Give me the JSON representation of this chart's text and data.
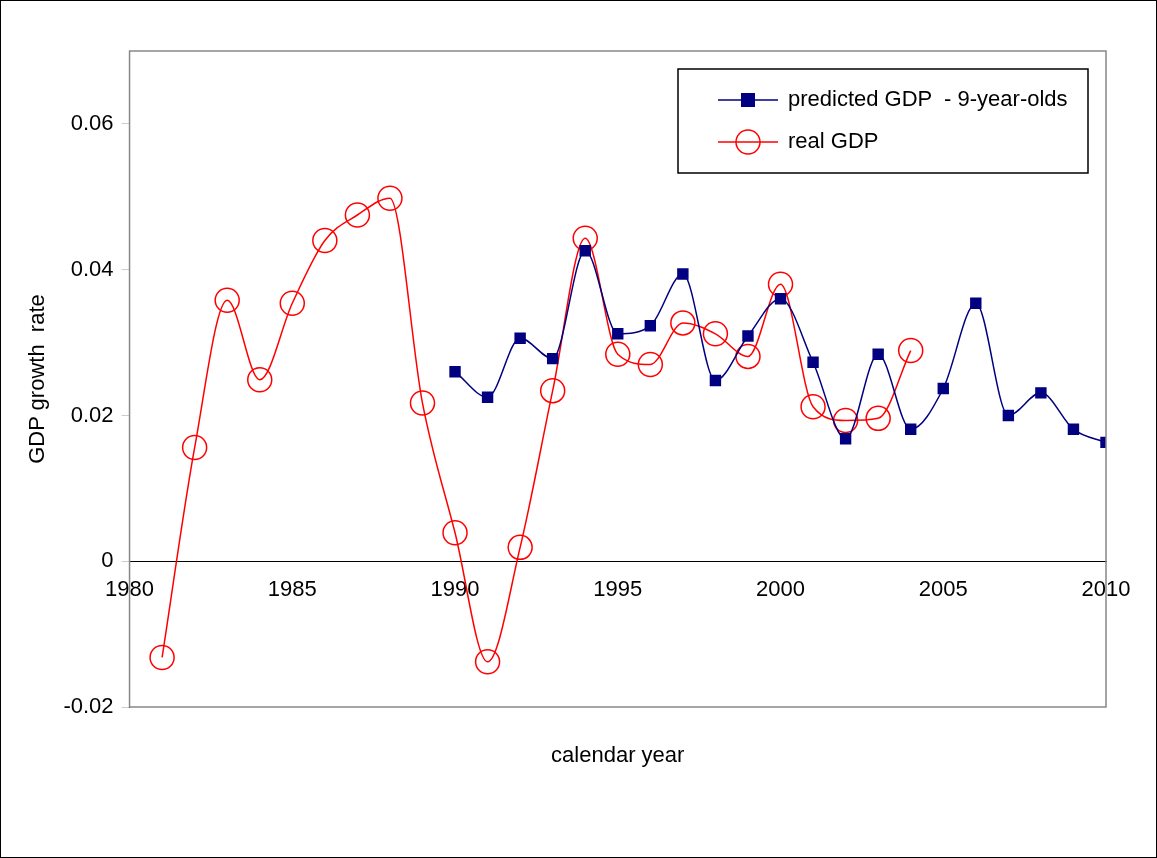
{
  "chart_data": {
    "type": "line",
    "xlabel": "calendar year",
    "ylabel": "GDP growth  rate",
    "xlim": [
      1980,
      2010
    ],
    "xticks": [
      1980,
      1985,
      1990,
      1995,
      2000,
      2005,
      2010
    ],
    "ylim": [
      -0.02,
      0.07
    ],
    "yticks": [
      -0.02,
      0,
      0.02,
      0.04,
      0.06
    ],
    "grid": false,
    "legend": "top right",
    "series": [
      {
        "name": "predicted GDP  - 9-year-olds",
        "color": "#000080",
        "marker": "square",
        "x": [
          1990,
          1991,
          1992,
          1993,
          1994,
          1995,
          1996,
          1997,
          1998,
          1999,
          2000,
          2001,
          2002,
          2003,
          2004,
          2005,
          2006,
          2007,
          2008,
          2009,
          2010
        ],
        "values": [
          0.026,
          0.0225,
          0.0306,
          0.0278,
          0.0426,
          0.0312,
          0.0323,
          0.0394,
          0.0248,
          0.0309,
          0.036,
          0.0273,
          0.0168,
          0.0284,
          0.0181,
          0.0237,
          0.0354,
          0.02,
          0.0231,
          0.0181,
          0.0163
        ]
      },
      {
        "name": "real GDP",
        "color": "#ff0000",
        "marker": "circle",
        "x": [
          1981,
          1982,
          1983,
          1984,
          1985,
          1986,
          1987,
          1988,
          1989,
          1990,
          1991,
          1992,
          1993,
          1994,
          1995,
          1996,
          1997,
          1998,
          1999,
          2000,
          2001,
          2002,
          2003,
          2004
        ],
        "values": [
          -0.0132,
          0.0156,
          0.0358,
          0.0249,
          0.0354,
          0.044,
          0.0475,
          0.0498,
          0.0217,
          0.0039,
          -0.0138,
          0.0019,
          0.0234,
          0.0443,
          0.0284,
          0.027,
          0.0327,
          0.0312,
          0.0281,
          0.038,
          0.0212,
          0.0193,
          0.0196,
          0.0289
        ]
      }
    ]
  }
}
